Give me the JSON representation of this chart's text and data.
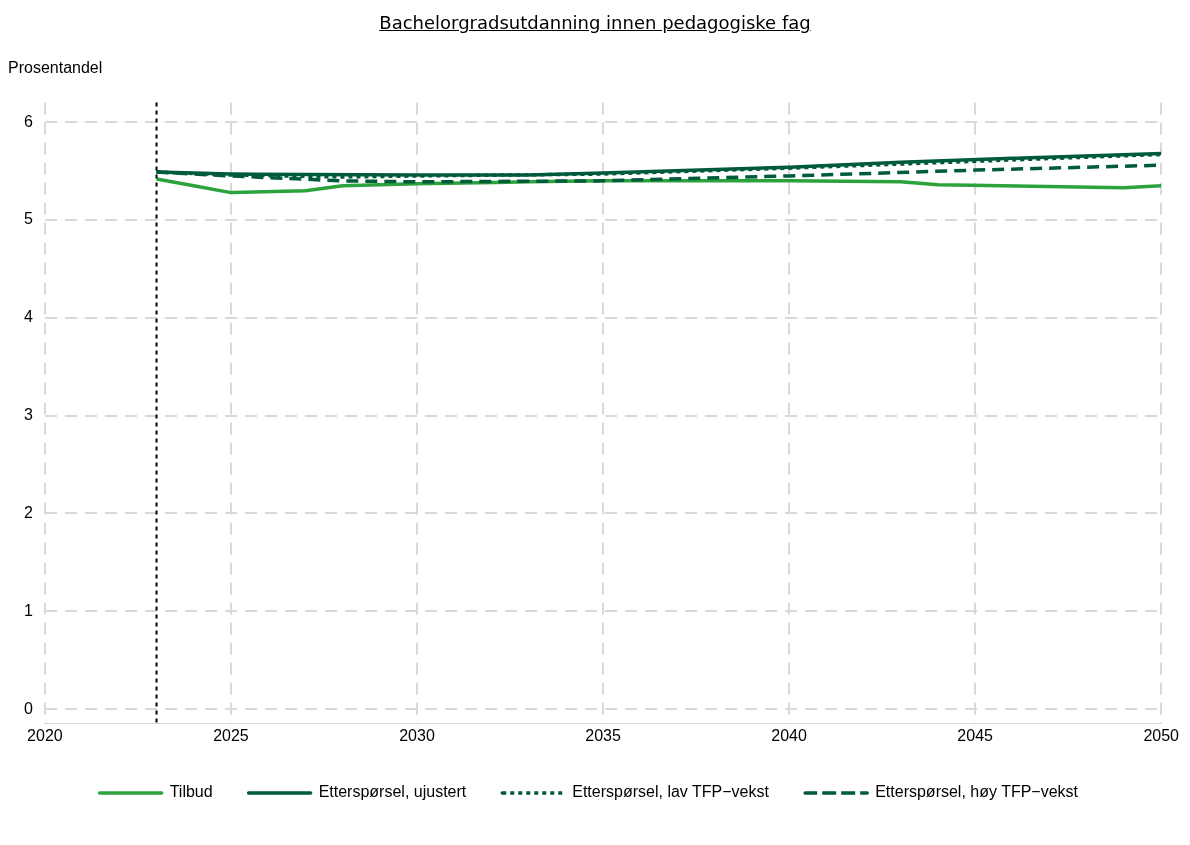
{
  "chart_data": {
    "type": "line",
    "title": "Bachelorgradsutdanning innen pedagogiske fag",
    "ylabel": "Prosentandel",
    "xlim": [
      2020,
      2050
    ],
    "xticks": [
      2020,
      2025,
      2030,
      2035,
      2040,
      2045,
      2050
    ],
    "ylim": [
      -0.15,
      6.2
    ],
    "yticks": [
      0,
      1,
      2,
      3,
      4,
      5,
      6
    ],
    "grid": true,
    "legend": "bottom",
    "ref_lines": [
      {
        "axis": "x",
        "value": 2023,
        "color": "#000000",
        "line_style": "dotted"
      }
    ],
    "series": [
      {
        "name": "Tilbud",
        "color": "#2ca23c",
        "line_style": "solid",
        "x": [
          2023,
          2024,
          2025,
          2027,
          2028,
          2030,
          2033,
          2035,
          2040,
          2043,
          2044,
          2049,
          2050
        ],
        "values": [
          5.42,
          5.35,
          5.28,
          5.3,
          5.35,
          5.37,
          5.39,
          5.4,
          5.4,
          5.39,
          5.36,
          5.33,
          5.35
        ]
      },
      {
        "name": "Etterspørsel, ujustert",
        "color": "#005a3c",
        "line_style": "solid",
        "x": [
          2023,
          2025,
          2030,
          2033,
          2035,
          2040,
          2043,
          2046,
          2050
        ],
        "values": [
          5.49,
          5.47,
          5.46,
          5.46,
          5.48,
          5.54,
          5.59,
          5.63,
          5.68
        ]
      },
      {
        "name": "Etterspørsel, lav TFP−vekst",
        "color": "#005a3c",
        "line_style": "dotted",
        "x": [
          2023,
          2025,
          2028,
          2030,
          2035,
          2040,
          2045,
          2050
        ],
        "values": [
          5.49,
          5.46,
          5.44,
          5.45,
          5.47,
          5.53,
          5.6,
          5.67
        ]
      },
      {
        "name": "Etterspørsel, høy TFP−vekst",
        "color": "#005a3c",
        "line_style": "dashed",
        "x": [
          2023,
          2025,
          2028,
          2030,
          2035,
          2040,
          2045,
          2050
        ],
        "values": [
          5.49,
          5.45,
          5.4,
          5.39,
          5.4,
          5.45,
          5.51,
          5.56
        ]
      }
    ]
  }
}
